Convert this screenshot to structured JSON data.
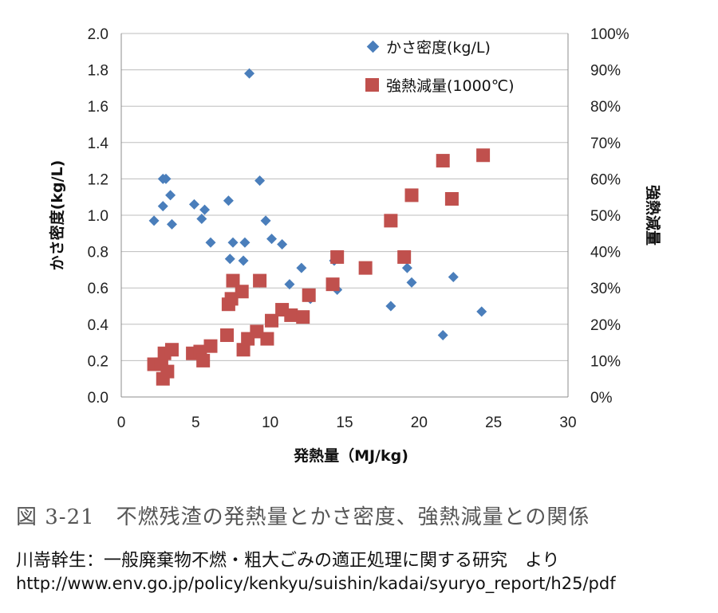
{
  "chart_data": {
    "type": "scatter",
    "xlabel": "発熱量（MJ/kg)",
    "ylabel_left": "かさ密度(kg/L)",
    "ylabel_right": "強熱減量",
    "xlim": [
      0,
      30
    ],
    "ylim_left": [
      0,
      2.0
    ],
    "ylim_right": [
      0,
      100
    ],
    "x_ticks": [
      "0",
      "5",
      "10",
      "15",
      "20",
      "25",
      "30"
    ],
    "y_left_ticks": [
      "0.0",
      "0.2",
      "0.4",
      "0.6",
      "0.8",
      "1.0",
      "1.2",
      "1.4",
      "1.6",
      "1.8",
      "2.0"
    ],
    "y_right_ticks": [
      "0%",
      "10%",
      "20%",
      "30%",
      "40%",
      "50%",
      "60%",
      "70%",
      "80%",
      "90%",
      "100%"
    ],
    "grid": "horizontal",
    "legend_position": "top-right",
    "series": [
      {
        "name": "かさ密度(kg/L)",
        "marker": "diamond",
        "color": "#4a7ebb",
        "axis": "left",
        "points": [
          [
            2.2,
            0.97
          ],
          [
            2.8,
            1.2
          ],
          [
            3.0,
            1.2
          ],
          [
            2.8,
            1.05
          ],
          [
            3.3,
            1.11
          ],
          [
            3.4,
            0.95
          ],
          [
            4.9,
            1.06
          ],
          [
            5.4,
            0.98
          ],
          [
            5.6,
            1.03
          ],
          [
            6.0,
            0.85
          ],
          [
            7.2,
            1.08
          ],
          [
            7.3,
            0.76
          ],
          [
            7.5,
            0.85
          ],
          [
            8.3,
            0.85
          ],
          [
            8.2,
            0.75
          ],
          [
            8.6,
            1.78
          ],
          [
            9.3,
            1.19
          ],
          [
            9.7,
            0.97
          ],
          [
            10.1,
            0.87
          ],
          [
            10.8,
            0.84
          ],
          [
            9.3,
            0.63
          ],
          [
            11.3,
            0.62
          ],
          [
            12.1,
            0.71
          ],
          [
            12.7,
            0.54
          ],
          [
            14.3,
            0.75
          ],
          [
            14.5,
            0.59
          ],
          [
            18.1,
            0.5
          ],
          [
            19.2,
            0.71
          ],
          [
            19.5,
            0.63
          ],
          [
            21.6,
            0.34
          ],
          [
            22.3,
            0.66
          ],
          [
            24.2,
            0.47
          ]
        ]
      },
      {
        "name": "強熱減量(1000℃)",
        "marker": "square",
        "color": "#c0504d",
        "axis": "right",
        "points": [
          [
            2.2,
            9
          ],
          [
            2.7,
            9
          ],
          [
            2.9,
            12
          ],
          [
            2.8,
            5
          ],
          [
            3.1,
            7
          ],
          [
            3.4,
            13
          ],
          [
            4.8,
            12
          ],
          [
            5.3,
            12.5
          ],
          [
            5.5,
            10
          ],
          [
            6.0,
            14
          ],
          [
            7.1,
            17
          ],
          [
            7.2,
            25.5
          ],
          [
            7.4,
            27
          ],
          [
            7.5,
            32
          ],
          [
            8.1,
            29
          ],
          [
            8.2,
            13
          ],
          [
            8.5,
            16
          ],
          [
            9.1,
            18
          ],
          [
            9.3,
            32
          ],
          [
            9.8,
            16
          ],
          [
            10.1,
            21
          ],
          [
            10.8,
            24
          ],
          [
            11.4,
            22.5
          ],
          [
            12.2,
            22
          ],
          [
            12.6,
            28
          ],
          [
            14.2,
            31
          ],
          [
            14.5,
            38.5
          ],
          [
            16.4,
            35.5
          ],
          [
            18.1,
            48.5
          ],
          [
            19.0,
            38.5
          ],
          [
            19.5,
            55.5
          ],
          [
            21.6,
            65
          ],
          [
            22.2,
            54.5
          ],
          [
            24.3,
            66.5
          ]
        ]
      }
    ]
  },
  "caption": "図 3-21　不燃残渣の発熱量とかさ密度、強熱減量との関係",
  "source_line": "川嵜幹生：一般廃棄物不燃・粗大ごみの適正処理に関する研究　より",
  "source_url": "http://www.env.go.jp/policy/kenkyu/suishin/kadai/syuryo_report/h25/pdf"
}
